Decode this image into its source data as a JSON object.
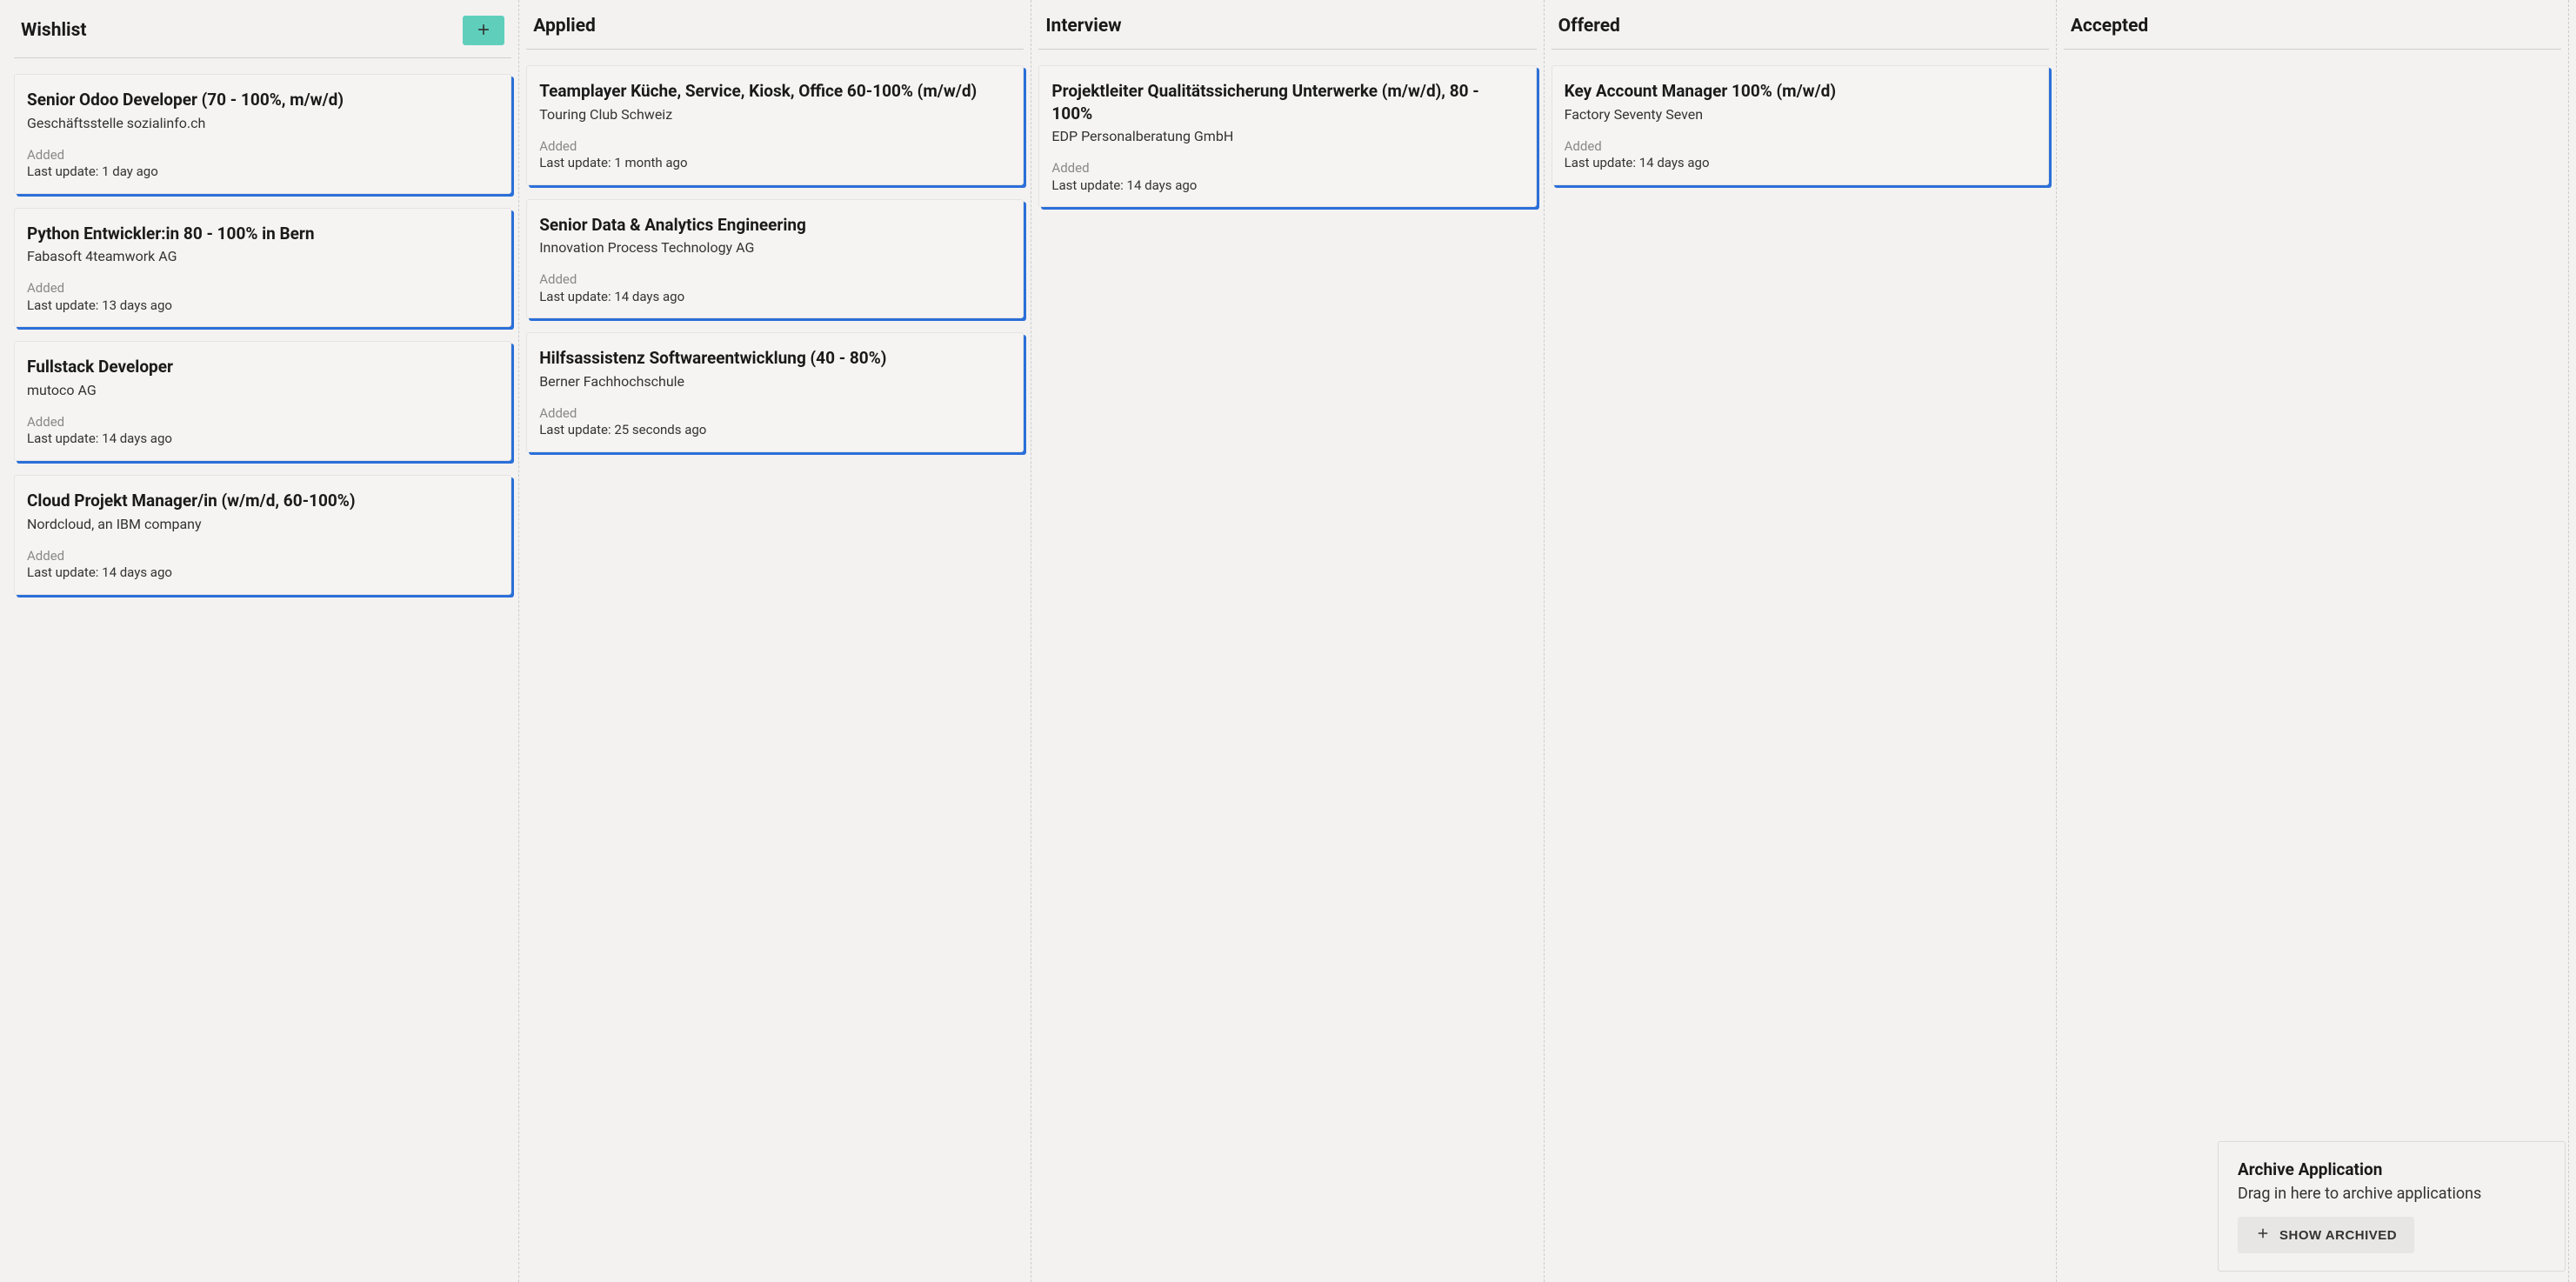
{
  "columns": [
    {
      "title": "Wishlist",
      "has_add": true,
      "cards": [
        {
          "title": "Senior Odoo Developer (70 - 100%, m/w/d)",
          "company": "Geschäftsstelle sozialinfo.ch",
          "added": "Added",
          "updated": "Last update: 1 day ago"
        },
        {
          "title": "Python Entwickler:in 80 - 100% in Bern",
          "company": "Fabasoft 4teamwork AG",
          "added": "Added",
          "updated": "Last update: 13 days ago"
        },
        {
          "title": "Fullstack Developer",
          "company": "mutoco AG",
          "added": "Added",
          "updated": "Last update: 14 days ago"
        },
        {
          "title": "Cloud Projekt Manager/in (w/m/d, 60-100%)",
          "company": "Nordcloud, an IBM company",
          "added": "Added",
          "updated": "Last update: 14 days ago"
        }
      ]
    },
    {
      "title": "Applied",
      "has_add": false,
      "cards": [
        {
          "title": "Teamplayer Küche, Service, Ki­osk, Office 60-100% (m/w/d)",
          "company": "Touring Club Schweiz",
          "added": "Added",
          "updated": "Last update: 1 month ago"
        },
        {
          "title": "Senior Data & Analytics Enginee­ring",
          "company": "Innovation Process Technology AG",
          "added": "Added",
          "updated": "Last update: 14 days ago"
        },
        {
          "title": "Hilfsassistenz Softwareentwick­lung (40 - 80%)",
          "company": "Berner Fachhochschule",
          "added": "Added",
          "updated": "Last update: 25 seconds ago"
        }
      ]
    },
    {
      "title": "Interview",
      "has_add": false,
      "cards": [
        {
          "title": "Projektleiter Qualitätssicherung Unterwerke (m/w/d), 80 - 100%",
          "company": "EDP Personalberatung GmbH",
          "added": "Added",
          "updated": "Last update: 14 days ago"
        }
      ]
    },
    {
      "title": "Offered",
      "has_add": false,
      "cards": [
        {
          "title": "Key Account Manager 100% (m/w/d)",
          "company": "Factory Seventy Seven",
          "added": "Added",
          "updated": "Last update: 14 days ago"
        }
      ]
    },
    {
      "title": "Accepted",
      "has_add": false,
      "cards": []
    }
  ],
  "archive": {
    "title": "Archive Application",
    "instruction": "Drag in here to archive applications",
    "button_label": "SHOW ARCHIVED"
  },
  "colors": {
    "background": "#f3f2f1",
    "card_shadow": "#2b6fd9",
    "add_button": "#5fcfbc"
  }
}
